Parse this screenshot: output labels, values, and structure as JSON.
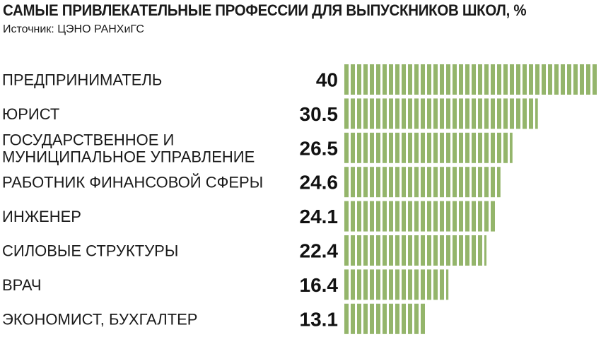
{
  "title": "САМЫЕ ПРИВЛЕКАТЕЛЬНЫЕ ПРОФЕССИИ ДЛЯ ВЫПУСКНИКОВ ШКОЛ, %",
  "source": "Источник: ЦЭНО РАНХиГС",
  "colors": {
    "bar": "#94b56b",
    "text": "#1a1a1a"
  },
  "chart_data": {
    "type": "bar",
    "orientation": "horizontal",
    "title": "САМЫЕ ПРИВЛЕКАТЕЛЬНЫЕ ПРОФЕССИИ ДЛЯ ВЫПУСКНИКОВ ШКОЛ, %",
    "subtitle": "Источник: ЦЭНО РАНХиГС",
    "categories": [
      [
        "ПРЕДПРИНИМАТЕЛЬ"
      ],
      [
        "ЮРИСТ"
      ],
      [
        "ГОСУДАРСТВЕННОЕ И",
        "МУНИЦИПАЛЬНОЕ УПРАВЛЕНИЕ"
      ],
      [
        "РАБОТНИК ФИНАНСОВОЙ СФЕРЫ"
      ],
      [
        "ИНЖЕНЕР"
      ],
      [
        "СИЛОВЫЕ СТРУКТУРЫ"
      ],
      [
        "ВРАЧ"
      ],
      [
        "ЭКОНОМИСТ, БУХГАЛТЕР"
      ]
    ],
    "values": [
      40,
      30.5,
      26.5,
      24.6,
      24.1,
      22.4,
      16.4,
      13.1
    ],
    "value_labels": [
      "40",
      "30.5",
      "26.5",
      "24.6",
      "24.1",
      "22.4",
      "16.4",
      "13.1"
    ],
    "xlim": [
      0,
      40
    ],
    "grid": false,
    "legend": "none"
  }
}
